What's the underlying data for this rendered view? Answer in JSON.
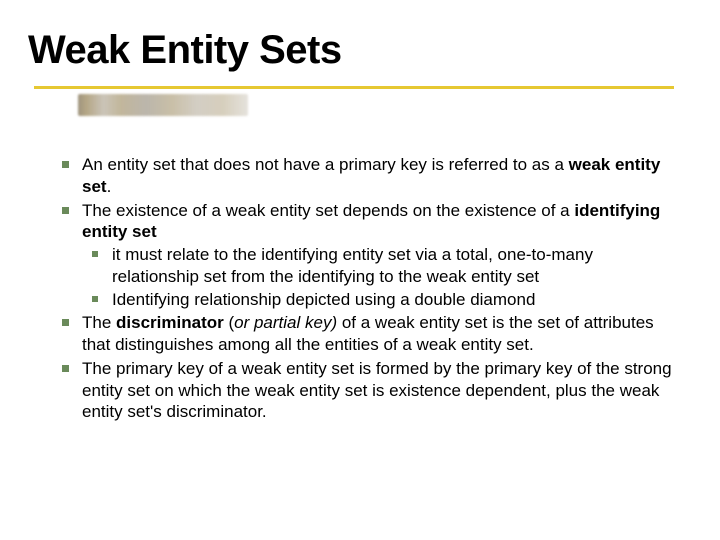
{
  "title": "Weak Entity Sets",
  "colors": {
    "text": "#000000",
    "background": "#ffffff",
    "bullet": "#6a8a5a",
    "underline": "#e6c832"
  },
  "typography": {
    "title_fontsize": 40,
    "title_weight": 900,
    "body_fontsize": 17,
    "line_height": 1.28
  },
  "bullets": {
    "b1_a": "An entity set that does not have a primary key is referred to as a ",
    "b1_bold": "weak entity set",
    "b1_c": ".",
    "b2_a": "The existence of a weak entity set depends on the existence of a ",
    "b2_bold": "identifying entity set",
    "b2_sub1": "it must relate to the identifying entity set via a total, one-to-many relationship set from the identifying to the weak entity set",
    "b2_sub2": "Identifying relationship depicted using a double diamond",
    "b3_a": "The ",
    "b3_bold": "discriminator",
    "b3_b": " (",
    "b3_italic": "or partial key)",
    "b3_c": " of a weak entity set is the set of attributes that distinguishes among all the entities of a weak entity set.",
    "b4": "The primary key of a weak entity set is formed by the primary key of the strong entity set on which the weak entity set is existence dependent, plus the weak entity set's discriminator."
  }
}
